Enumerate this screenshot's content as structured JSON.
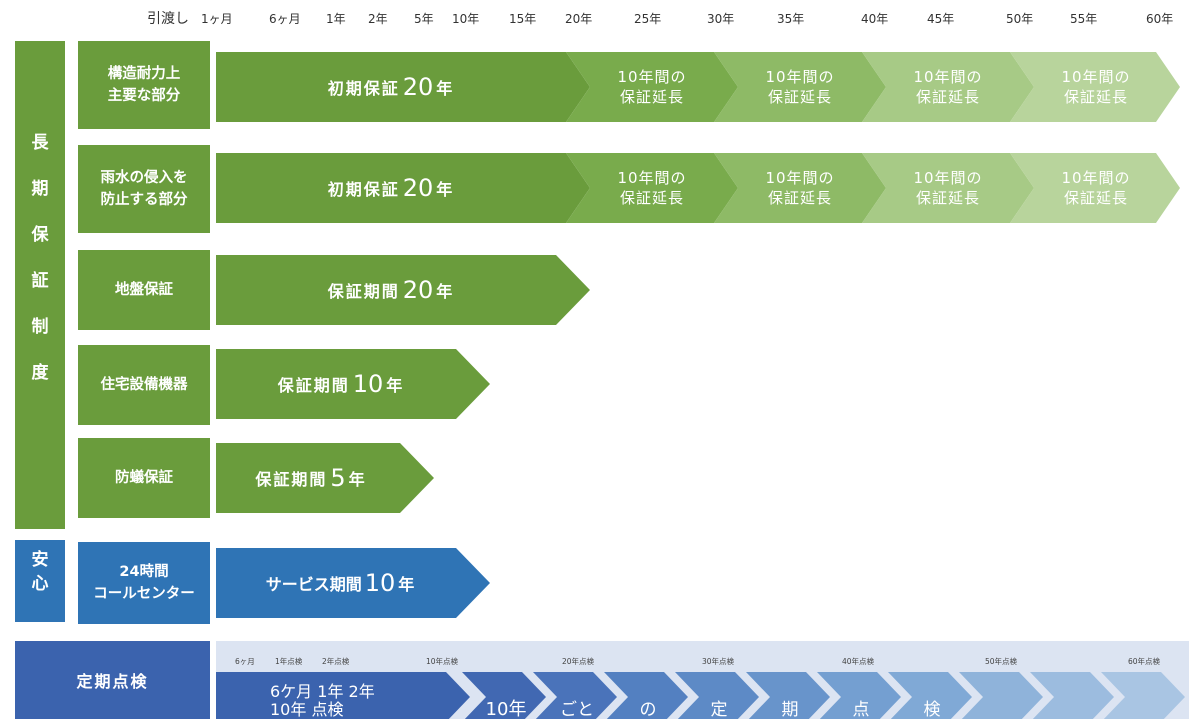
{
  "timeline": [
    "引渡し",
    "1ヶ月",
    "6ヶ月",
    "1年",
    "2年",
    "5年",
    "10年",
    "15年",
    "20年",
    "25年",
    "30年",
    "35年",
    "40年",
    "45年",
    "50年",
    "55年",
    "60年"
  ],
  "groups": {
    "long_term": {
      "chars": [
        "長",
        "期",
        "保",
        "証",
        "制",
        "度"
      ],
      "color": "#6a9c3c"
    },
    "anshin": {
      "chars": [
        "安",
        "心"
      ],
      "color": "#2f74b5"
    }
  },
  "rows": {
    "structure": {
      "label": "構造耐力上\n主要な部分",
      "bar_prefix": "初期保証",
      "bar_value": "20",
      "bar_suffix": "年"
    },
    "rain": {
      "label": "雨水の侵入を\n防止する部分",
      "bar_prefix": "初期保証",
      "bar_value": "20",
      "bar_suffix": "年"
    },
    "ground": {
      "label": "地盤保証",
      "bar_prefix": "保証期間",
      "bar_value": "20",
      "bar_suffix": "年"
    },
    "equipment": {
      "label": "住宅設備機器",
      "bar_prefix": "保証期間",
      "bar_value": "10",
      "bar_suffix": "年"
    },
    "termite": {
      "label": "防蟻保証",
      "bar_prefix": "保証期間",
      "bar_value": "5",
      "bar_suffix": "年"
    },
    "callcenter": {
      "label": "24時間\nコールセンター",
      "bar_prefix": "サービス期間",
      "bar_value": "10",
      "bar_suffix": "年"
    }
  },
  "extension": {
    "line1": "10年間の",
    "line2": "保証延長"
  },
  "inspection": {
    "label": "定期点検",
    "ticks": [
      "6ヶ月",
      "1年点検",
      "2年点検",
      "10年点検",
      "20年点検",
      "30年点検",
      "40年点検",
      "50年点検",
      "60年点検"
    ],
    "first_line1": "6ケ月  1年  2年",
    "first_line2": "10年  点検",
    "chevrons": [
      "10年",
      "ごと",
      "の",
      "定",
      "期",
      "点",
      "検",
      "",
      "",
      ""
    ]
  },
  "colors": {
    "green": "#6a9c3c",
    "ext1": "#79ab4c",
    "ext2": "#8eba66",
    "ext3": "#a7ca86",
    "ext4": "#b8d49c",
    "blue": "#2f74b5",
    "navy": "#3b63ae",
    "inspect_bg": "#dce4f2"
  }
}
